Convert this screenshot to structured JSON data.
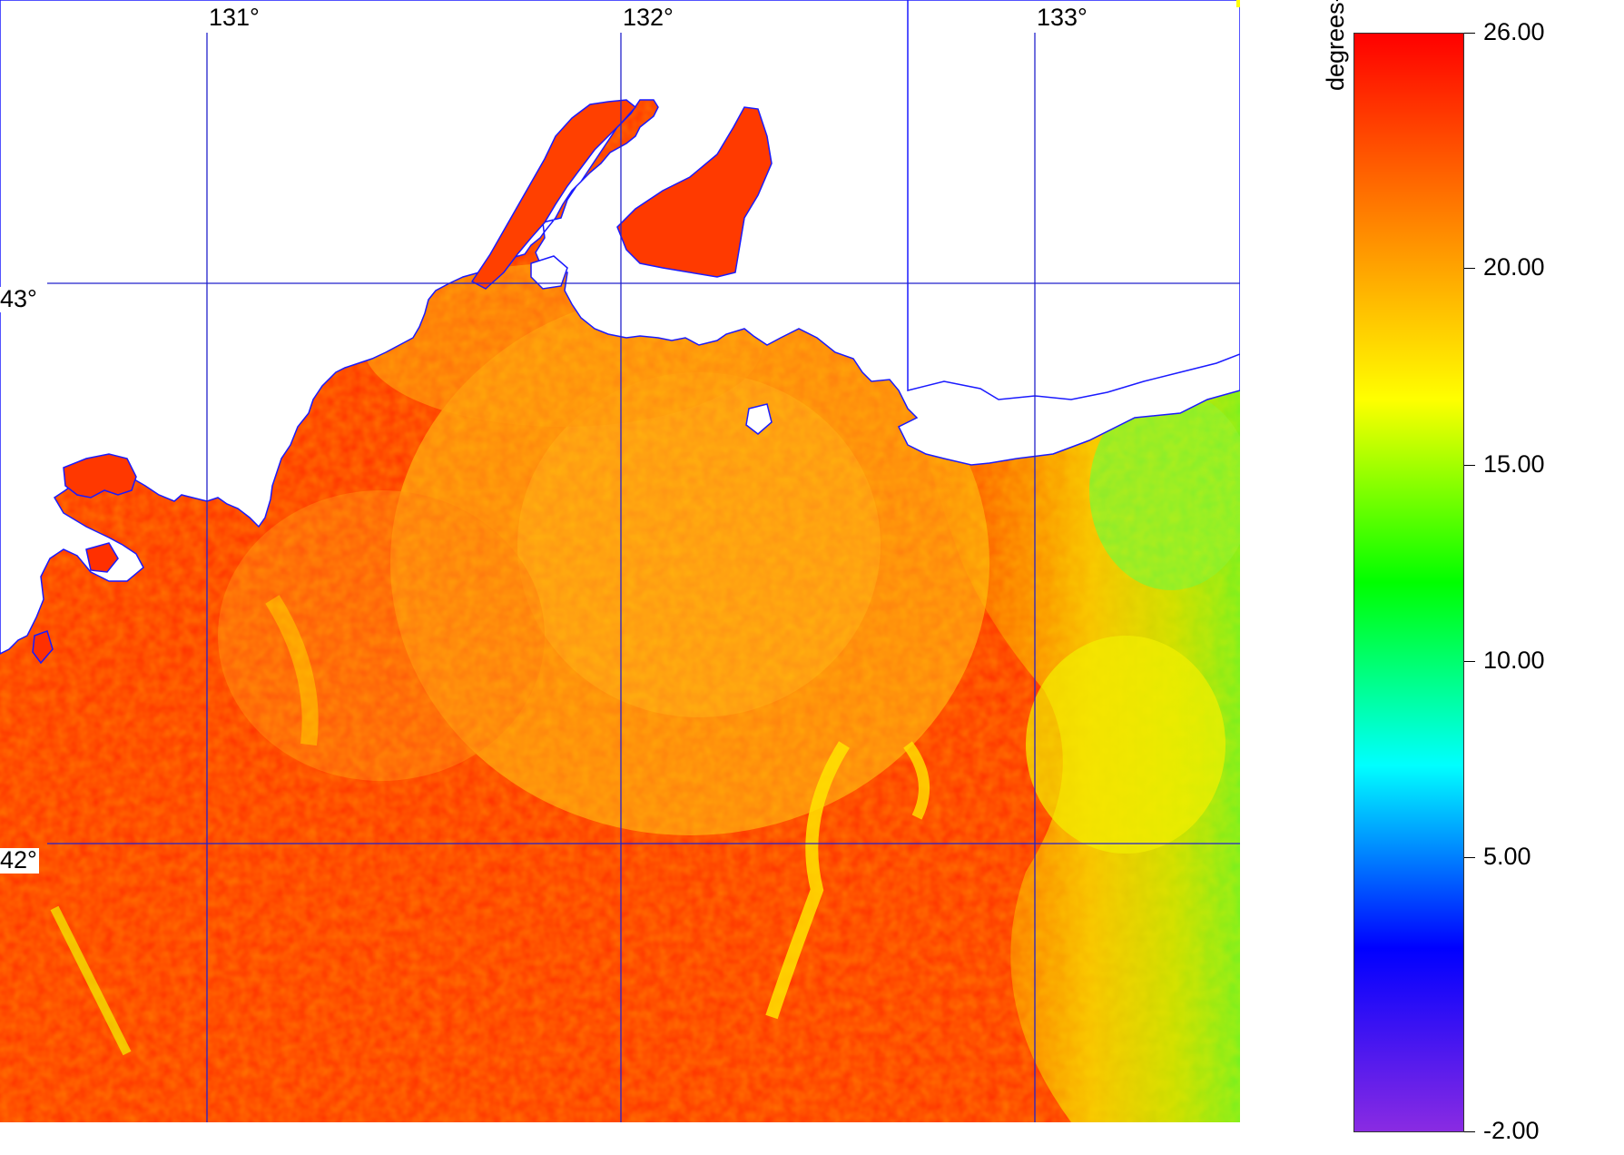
{
  "map": {
    "lon_labels": [
      "131°",
      "132°",
      "133°"
    ],
    "lat_labels": [
      "43°",
      "42°"
    ]
  },
  "colorbar": {
    "units": "degrees-C",
    "ticks": [
      "26.00",
      "20.00",
      "15.00",
      "10.00",
      "5.00",
      "-2.00"
    ],
    "min": -2.0,
    "max": 26.0
  },
  "colors": {
    "land": "#ffffff",
    "coastline": "#1a1aff",
    "grid": "#2222cc",
    "ramp": [
      "#8a2be2",
      "#0000ff",
      "#00ffff",
      "#00ff00",
      "#ffff00",
      "#ff8000",
      "#ff0000"
    ]
  }
}
